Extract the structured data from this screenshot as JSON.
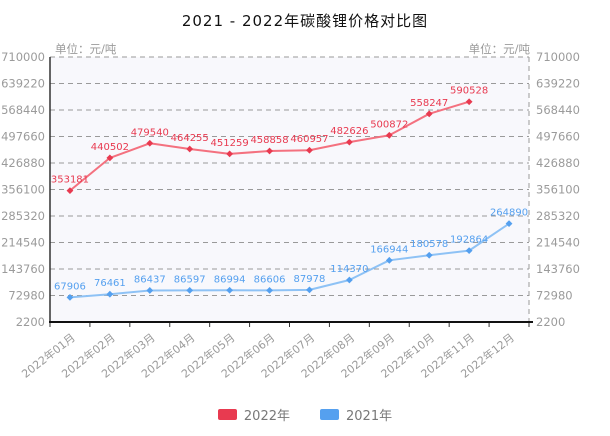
{
  "chart_data": {
    "type": "line",
    "title": "2021 - 2022年碳酸锂价格对比图",
    "unit_label_left": "单位：元/吨",
    "unit_label_right": "单位：元/吨",
    "categories": [
      "2022年01月",
      "2022年02月",
      "2022年03月",
      "2022年04月",
      "2022年05月",
      "2022年06月",
      "2022年07月",
      "2022年08月",
      "2022年09月",
      "2022年10月",
      "2022年11月",
      "2022年12月"
    ],
    "y_ticks": [
      2200,
      72980,
      143760,
      214540,
      285320,
      356100,
      426880,
      497660,
      568440,
      639220,
      710000
    ],
    "ylim": [
      2200,
      710000
    ],
    "xlabel": "",
    "ylabel": "元/吨",
    "grid": "horizontal-dashed",
    "legend_position": "bottom",
    "plot_background": "#f8f8fc",
    "axis_text_color": "#9b9b9b",
    "gridline_color": "#9a9a9a",
    "series": [
      {
        "name": "2022年",
        "color": "#e83a50",
        "line_color": "#f4717f",
        "values": [
          353181,
          440502,
          479540,
          464255,
          451259,
          458858,
          460957,
          482626,
          500872,
          558247,
          590528
        ]
      },
      {
        "name": "2021年",
        "color": "#55a0ef",
        "line_color": "#8ec2f5",
        "values": [
          67906,
          76461,
          86437,
          86597,
          86994,
          86606,
          87978,
          114370,
          166944,
          180578,
          192864,
          264890
        ]
      }
    ]
  }
}
